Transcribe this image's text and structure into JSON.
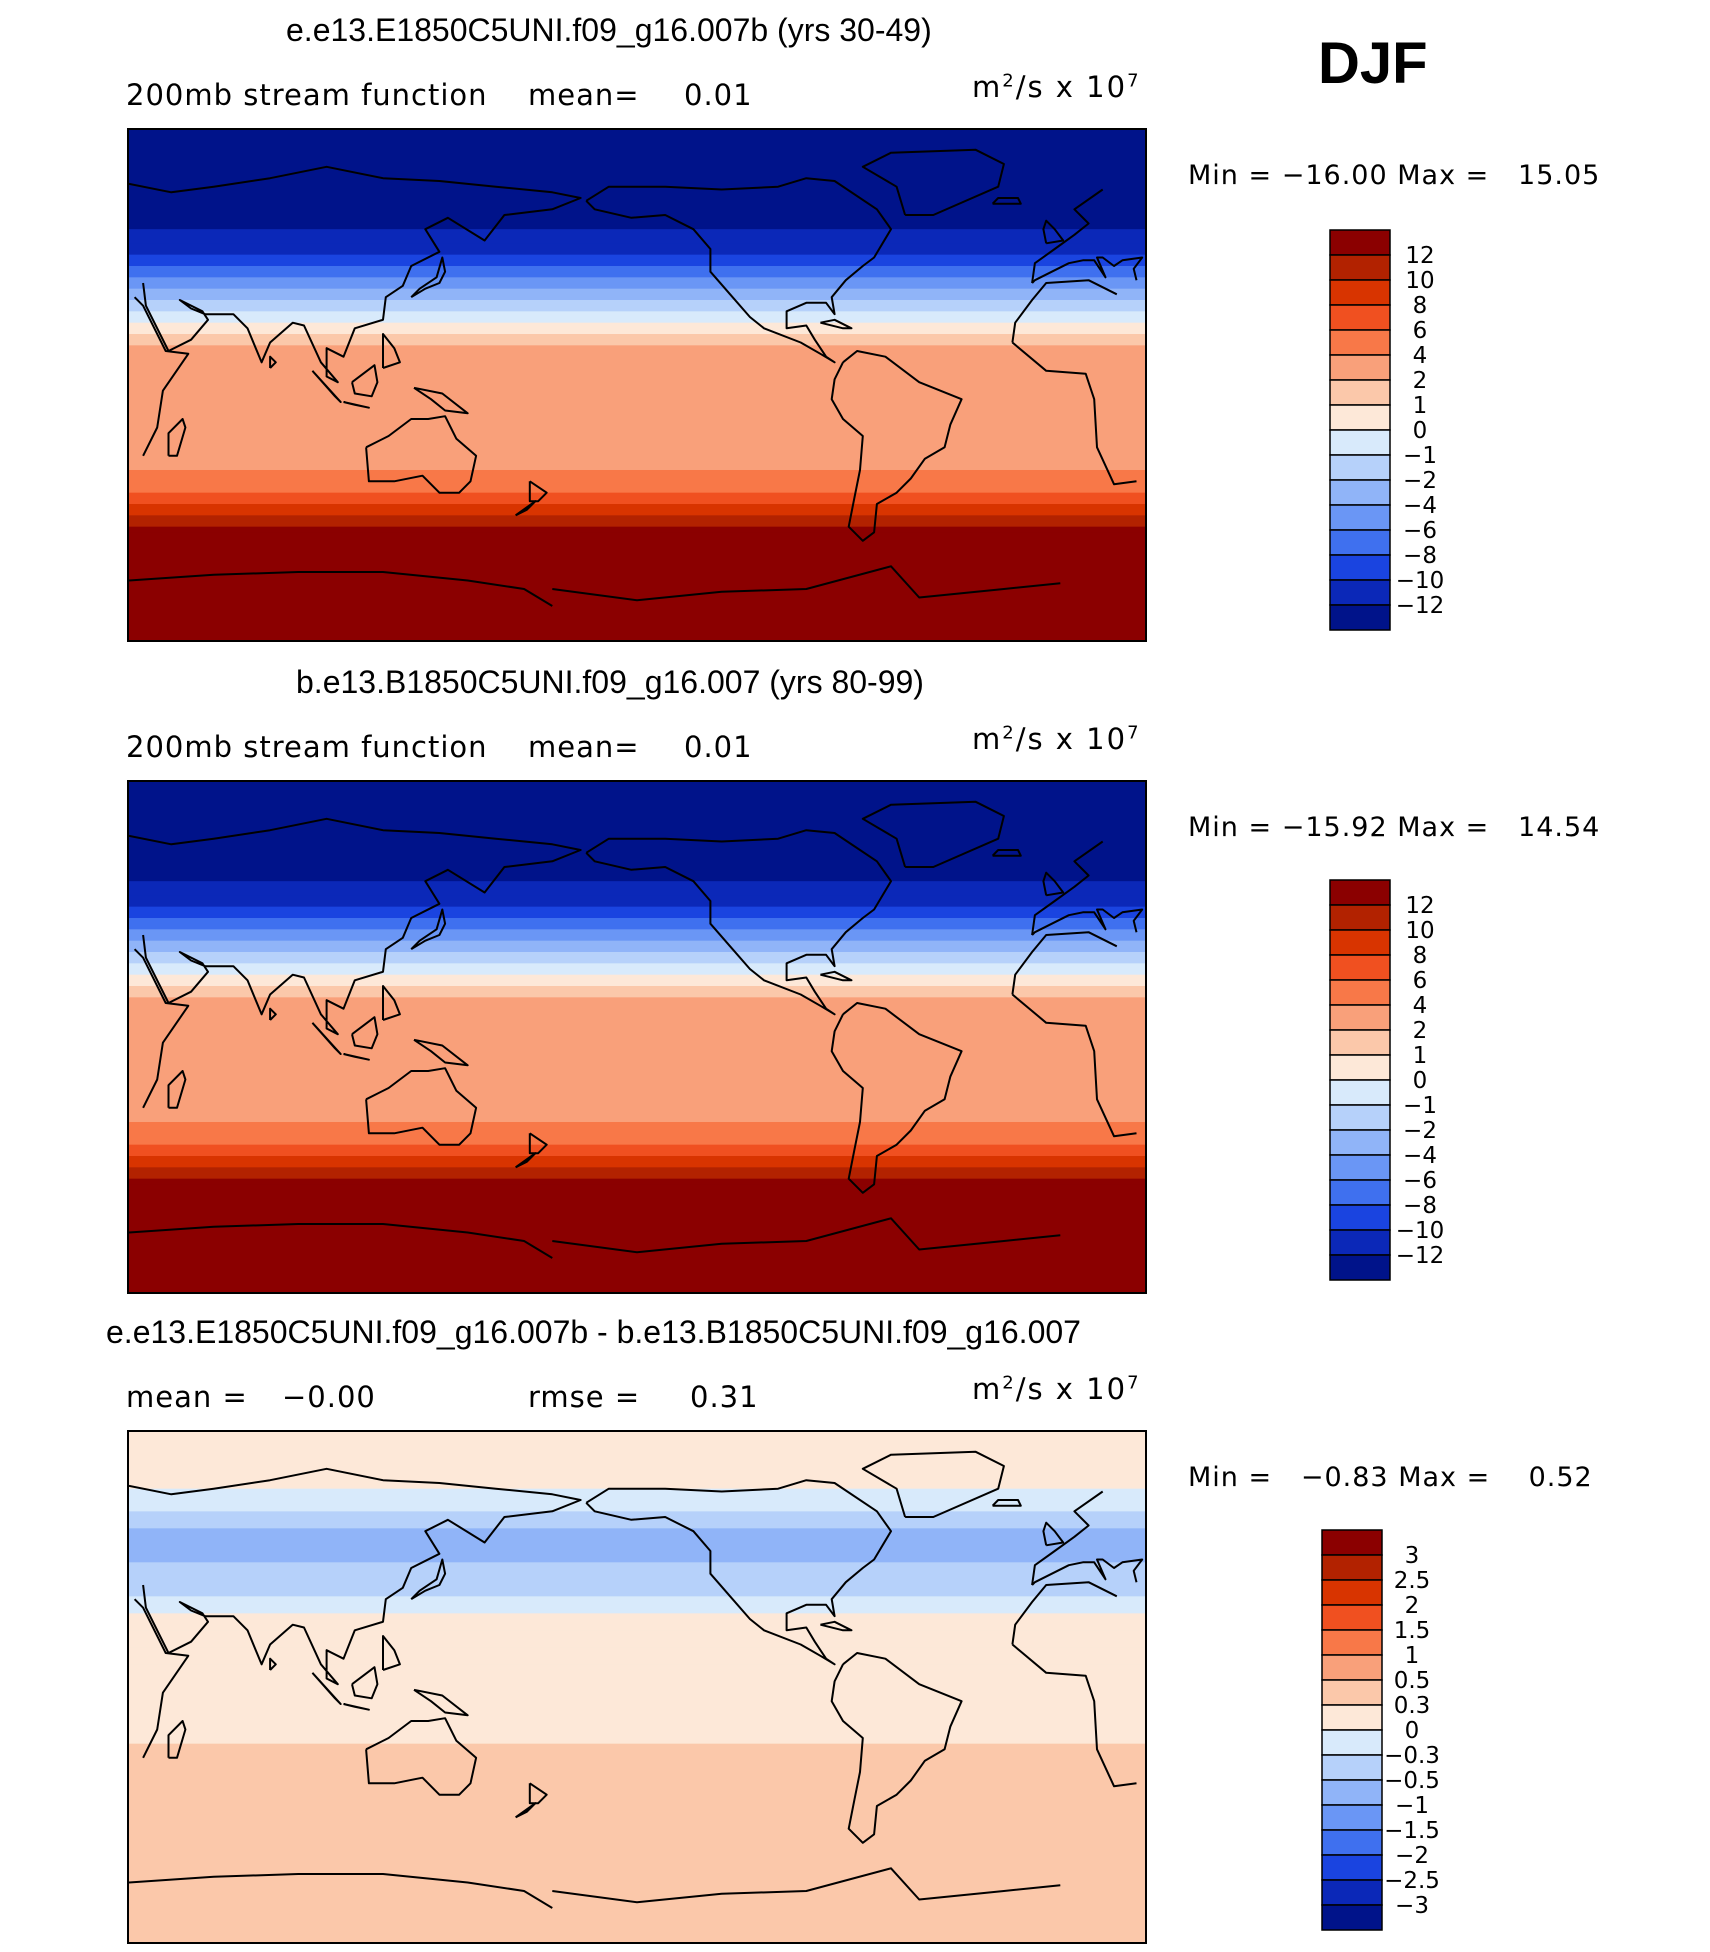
{
  "season_label": "DJF",
  "panels": [
    {
      "title": "e.e13.E1850C5UNI.f09_g16.007b (yrs 30-49)",
      "left_label": "200mb stream function",
      "stat1_label": "mean=",
      "stat1_value": "0.01",
      "stat2_label": "",
      "stat2_value": "",
      "units_base": "m",
      "units_exp1": "2",
      "units_mid": "/s x 10",
      "units_exp2": "7",
      "min_label": "Min =",
      "min_value": "−16.00",
      "max_label": "Max =",
      "max_value": "15.05",
      "colorbar": {
        "levels": [
          "12",
          "10",
          "8",
          "6",
          "4",
          "2",
          "1",
          "0",
          "−1",
          "−2",
          "−4",
          "−6",
          "−8",
          "−10",
          "−12"
        ],
        "colors": [
          "#8b0000",
          "#b22200",
          "#d83400",
          "#f05020",
          "#f87848",
          "#f9a07a",
          "#fbc8aa",
          "#fde8d8",
          "#d8eafb",
          "#b6d1fa",
          "#90b4f8",
          "#6a96f5",
          "#3f70ef",
          "#1a44e0",
          "#0b28b8",
          "#00138a"
        ]
      },
      "zonal_bands": {
        "lats": [
          90,
          72,
          63,
          55,
          50,
          46,
          42,
          38,
          34,
          30,
          26,
          22,
          18,
          14,
          10,
          6,
          2,
          -2,
          -6,
          -10,
          -14,
          -18,
          -22,
          -26,
          -30,
          -34,
          -38,
          -42,
          -46,
          -50,
          -52,
          -54,
          -90
        ],
        "values": [
          -14,
          -14,
          -13,
          -12,
          -11,
          -10,
          -8,
          -6,
          -4,
          -2,
          -1,
          0,
          1,
          2,
          2,
          2,
          2,
          2,
          2,
          2,
          2,
          2,
          3,
          3,
          4,
          5,
          6,
          8,
          10,
          12,
          14,
          14,
          14
        ]
      }
    },
    {
      "title": "b.e13.B1850C5UNI.f09_g16.007 (yrs 80-99)",
      "left_label": "200mb stream function",
      "stat1_label": "mean=",
      "stat1_value": "0.01",
      "stat2_label": "",
      "stat2_value": "",
      "units_base": "m",
      "units_exp1": "2",
      "units_mid": "/s x 10",
      "units_exp2": "7",
      "min_label": "Min =",
      "min_value": "−15.92",
      "max_label": "Max =",
      "max_value": "14.54",
      "colorbar": {
        "levels": [
          "12",
          "10",
          "8",
          "6",
          "4",
          "2",
          "1",
          "0",
          "−1",
          "−2",
          "−4",
          "−6",
          "−8",
          "−10",
          "−12"
        ],
        "colors": [
          "#8b0000",
          "#b22200",
          "#d83400",
          "#f05020",
          "#f87848",
          "#f9a07a",
          "#fbc8aa",
          "#fde8d8",
          "#d8eafb",
          "#b6d1fa",
          "#90b4f8",
          "#6a96f5",
          "#3f70ef",
          "#1a44e0",
          "#0b28b8",
          "#00138a"
        ]
      },
      "zonal_bands": {
        "lats": [
          90,
          72,
          63,
          55,
          50,
          46,
          42,
          38,
          34,
          30,
          26,
          22,
          18,
          14,
          10,
          6,
          2,
          -2,
          -6,
          -10,
          -14,
          -18,
          -22,
          -26,
          -30,
          -34,
          -38,
          -42,
          -46,
          -50,
          -52,
          -54,
          -90
        ],
        "values": [
          -14,
          -14,
          -13,
          -12,
          -11,
          -10,
          -8,
          -6,
          -4,
          -2,
          -1,
          0,
          1,
          2,
          2,
          2,
          2,
          2,
          2,
          2,
          2,
          2,
          3,
          3,
          4,
          5,
          6,
          8,
          10,
          12,
          14,
          14,
          14
        ]
      }
    },
    {
      "title": "e.e13.E1850C5UNI.f09_g16.007b - b.e13.B1850C5UNI.f09_g16.007",
      "left_label": "mean =",
      "stat1_label": "−0.00",
      "stat1_value": "",
      "stat2_label": "rmse =",
      "stat2_value": "0.31",
      "units_base": "m",
      "units_exp1": "2",
      "units_mid": "/s x 10",
      "units_exp2": "7",
      "min_label": "Min =",
      "min_value": "−0.83",
      "max_label": "Max =",
      "max_value": "0.52",
      "colorbar": {
        "levels": [
          "3",
          "2.5",
          "2",
          "1.5",
          "1",
          "0.5",
          "0.3",
          "0",
          "−0.3",
          "−0.5",
          "−1",
          "−1.5",
          "−2",
          "−2.5",
          "−3"
        ],
        "colors": [
          "#8b0000",
          "#b22200",
          "#d83400",
          "#f05020",
          "#f87848",
          "#f9a07a",
          "#fbc8aa",
          "#fde8d8",
          "#d8eafb",
          "#b6d1fa",
          "#90b4f8",
          "#6a96f5",
          "#3f70ef",
          "#1a44e0",
          "#0b28b8",
          "#00138a"
        ]
      },
      "zonal_bands": {
        "lats": [
          90,
          70,
          62,
          56,
          50,
          44,
          38,
          32,
          26,
          20,
          14,
          8,
          0,
          -20,
          -40,
          -60,
          -90
        ],
        "values": [
          0.2,
          0.1,
          -0.3,
          -0.6,
          -0.8,
          -0.6,
          -0.4,
          -0.2,
          0.05,
          0.1,
          0.2,
          0.25,
          0.25,
          0.3,
          0.35,
          0.3,
          0.3
        ]
      }
    }
  ]
}
